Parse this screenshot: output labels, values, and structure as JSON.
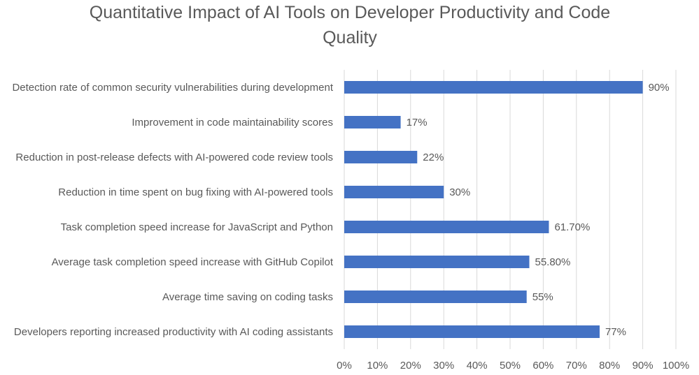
{
  "chart_data": {
    "type": "bar",
    "orientation": "horizontal",
    "title": "Quantitative Impact of AI Tools on Developer Productivity and Code Quality",
    "categories": [
      "Detection rate of common security vulnerabilities during development",
      "Improvement in code maintainability scores",
      "Reduction in post-release defects with AI-powered code review tools",
      "Reduction in time spent on bug fixing with AI-powered tools",
      "Task completion speed increase for JavaScript and Python",
      "Average task completion speed increase with GitHub Copilot",
      "Average time saving on coding tasks",
      "Developers reporting increased productivity with AI coding assistants"
    ],
    "values": [
      90,
      17,
      22,
      30,
      61.7,
      55.8,
      55,
      77
    ],
    "value_labels": [
      "90%",
      "17%",
      "22%",
      "30%",
      "61.70%",
      "55.80%",
      "55%",
      "77%"
    ],
    "color": "#4472c4",
    "xlim": [
      0,
      100
    ],
    "xticks": [
      {
        "value": 0,
        "label": "0%"
      },
      {
        "value": 10,
        "label": "10%"
      },
      {
        "value": 20,
        "label": "20%"
      },
      {
        "value": 30,
        "label": "30%"
      },
      {
        "value": 40,
        "label": "40%"
      },
      {
        "value": 50,
        "label": "50%"
      },
      {
        "value": 60,
        "label": "60%"
      },
      {
        "value": 70,
        "label": "70%"
      },
      {
        "value": 80,
        "label": "80%"
      },
      {
        "value": 90,
        "label": "90%"
      },
      {
        "value": 100,
        "label": "100%"
      }
    ],
    "grid": true
  }
}
